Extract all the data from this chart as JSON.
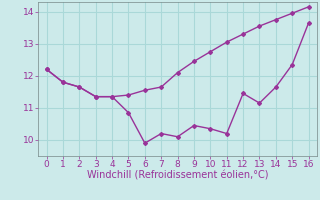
{
  "line1_x": [
    0,
    1,
    2,
    3,
    4,
    5,
    6,
    7,
    8,
    9,
    10,
    11,
    12,
    13,
    14,
    15,
    16
  ],
  "line1_y": [
    12.2,
    11.8,
    11.65,
    11.35,
    11.35,
    11.4,
    11.55,
    11.65,
    12.1,
    12.45,
    12.75,
    13.05,
    13.3,
    13.55,
    13.75,
    13.95,
    14.15
  ],
  "line2_x": [
    0,
    1,
    2,
    3,
    4,
    5,
    6,
    7,
    8,
    9,
    10,
    11,
    12,
    13,
    14,
    15,
    16
  ],
  "line2_y": [
    12.2,
    11.8,
    11.65,
    11.35,
    11.35,
    10.85,
    9.9,
    10.2,
    10.1,
    10.45,
    10.35,
    10.2,
    11.45,
    11.15,
    11.65,
    12.35,
    13.65
  ],
  "line_color": "#993399",
  "marker": "D",
  "marker_size": 2,
  "xlabel": "Windchill (Refroidissement éolien,°C)",
  "xlabel_fontsize": 7,
  "xlim": [
    -0.5,
    16.5
  ],
  "ylim": [
    9.5,
    14.3
  ],
  "yticks": [
    10,
    11,
    12,
    13,
    14
  ],
  "xticks": [
    0,
    1,
    2,
    3,
    4,
    5,
    6,
    7,
    8,
    9,
    10,
    11,
    12,
    13,
    14,
    15,
    16
  ],
  "grid_color": "#aad8d8",
  "background_color": "#cceaea",
  "tick_fontsize": 6.5,
  "line_width": 1.0
}
